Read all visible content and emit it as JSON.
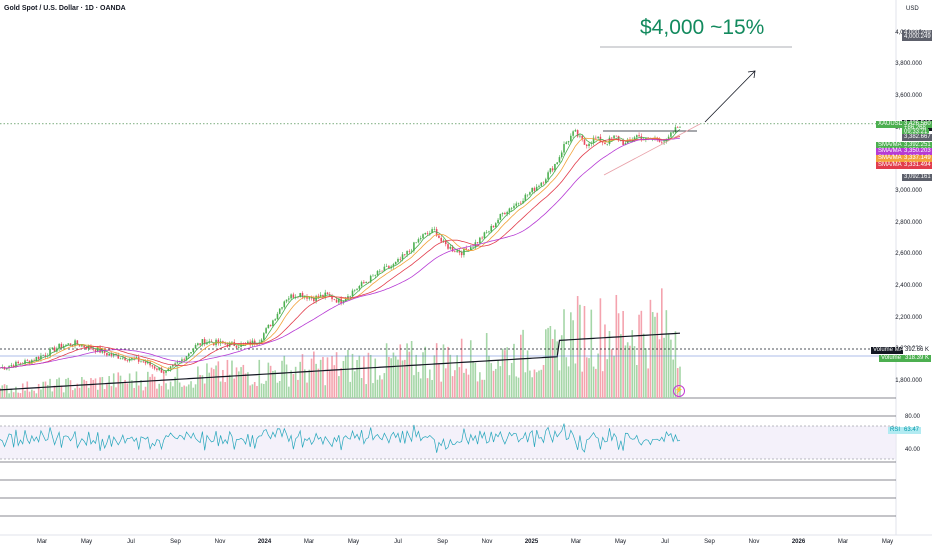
{
  "header": {
    "title": "Gold Spot / U.S. Dollar · 1D · OANDA",
    "currency": "USD"
  },
  "annotation": {
    "text": "$4,000 ~15%"
  },
  "price_axis": {
    "ticks": [
      "4,000.000",
      "3,800.000",
      "3,600.000",
      "3,400.000",
      "3,200.000",
      "3,000.000",
      "2,800.000",
      "2,600.000",
      "2,400.000",
      "2,200.000",
      "2,000.000",
      "1,800.000"
    ],
    "labels": [
      {
        "text": "4,000.249",
        "value": 4000.249,
        "color": "#5d606b"
      },
      {
        "text": "4,000.249",
        "value": 3975,
        "color": "#5d606b"
      },
      {
        "text": "3,431.377",
        "value": 3431.377,
        "color": "#131722"
      },
      {
        "text": "3,431.377",
        "value": 3404,
        "color": "#131722"
      },
      {
        "text": "XAUUSD",
        "value": 3426.56,
        "color": "#4caf50"
      },
      {
        "text": "3,426.560",
        "value": 3426.56,
        "color": "#4caf50"
      },
      {
        "text": "+86.268",
        "value": 3398,
        "color": "#4caf50"
      },
      {
        "text": "09:33:21",
        "value": 3374,
        "color": "#4caf50"
      },
      {
        "text": "3,382.667",
        "value": 3340,
        "color": "#5d606b"
      },
      {
        "text": "SMA/MA",
        "value": 3292.251,
        "color": "#4caf50"
      },
      {
        "text": "3,392.251",
        "value": 3292.251,
        "color": "#4caf50"
      },
      {
        "text": "SMA/MA",
        "value": 3250.203,
        "color": "#b73bd4"
      },
      {
        "text": "3,350.203",
        "value": 3250.203,
        "color": "#b73bd4"
      },
      {
        "text": "SMA/MA",
        "value": 3208,
        "color": "#f2a23b"
      },
      {
        "text": "3,337.149",
        "value": 3208,
        "color": "#f2a23b"
      },
      {
        "text": "SMA/MA",
        "value": 3166,
        "color": "#e23d4c"
      },
      {
        "text": "3,331.494",
        "value": 3166,
        "color": "#e23d4c"
      },
      {
        "text": "3,092.161",
        "value": 3092.161,
        "color": "#5d606b"
      }
    ],
    "volume_labels": [
      {
        "text": "Volume MA",
        "color": "#131722"
      },
      {
        "text": "392.66 K",
        "color": "#131722"
      },
      {
        "text": "Volume",
        "color": "#4caf50"
      },
      {
        "text": "318.39 K",
        "color": "#4caf50"
      }
    ]
  },
  "rsi": {
    "label": "RSI",
    "value": "63.47",
    "upper": "80.00",
    "lower": "40.00"
  },
  "time_axis": [
    "Mar",
    "May",
    "Jul",
    "Sep",
    "Nov",
    "2024",
    "Mar",
    "May",
    "Jul",
    "Sep",
    "Nov",
    "2025",
    "Mar",
    "May",
    "Jul",
    "Sep",
    "Nov",
    "2026",
    "Mar",
    "May"
  ],
  "chart_data": {
    "type": "candlestick",
    "symbol": "XAUUSD",
    "last_price": 3426.56,
    "change": 86.268,
    "resistance": 3431.377,
    "target": 4000.249,
    "ylim": [
      1700,
      4150
    ],
    "price_path": [
      [
        0,
        1890
      ],
      [
        0.02,
        1910
      ],
      [
        0.045,
        1935
      ],
      [
        0.07,
        1985
      ],
      [
        0.09,
        2030
      ],
      [
        0.11,
        2045
      ],
      [
        0.14,
        2010
      ],
      [
        0.16,
        1975
      ],
      [
        0.19,
        1950
      ],
      [
        0.21,
        1930
      ],
      [
        0.23,
        1890
      ],
      [
        0.245,
        1860
      ],
      [
        0.265,
        1930
      ],
      [
        0.285,
        2020
      ],
      [
        0.3,
        2060
      ],
      [
        0.33,
        2040
      ],
      [
        0.36,
        2035
      ],
      [
        0.38,
        2060
      ],
      [
        0.4,
        2180
      ],
      [
        0.42,
        2330
      ],
      [
        0.44,
        2360
      ],
      [
        0.46,
        2330
      ],
      [
        0.48,
        2350
      ],
      [
        0.5,
        2310
      ],
      [
        0.52,
        2380
      ],
      [
        0.54,
        2440
      ],
      [
        0.56,
        2500
      ],
      [
        0.58,
        2540
      ],
      [
        0.6,
        2620
      ],
      [
        0.62,
        2720
      ],
      [
        0.64,
        2760
      ],
      [
        0.65,
        2680
      ],
      [
        0.665,
        2640
      ],
      [
        0.68,
        2620
      ],
      [
        0.7,
        2680
      ],
      [
        0.72,
        2760
      ],
      [
        0.74,
        2870
      ],
      [
        0.76,
        2930
      ],
      [
        0.78,
        3000
      ],
      [
        0.8,
        3080
      ],
      [
        0.82,
        3200
      ],
      [
        0.83,
        3300
      ],
      [
        0.845,
        3380
      ],
      [
        0.86,
        3300
      ],
      [
        0.875,
        3340
      ],
      [
        0.89,
        3310
      ],
      [
        0.905,
        3350
      ],
      [
        0.92,
        3300
      ],
      [
        0.935,
        3360
      ],
      [
        0.95,
        3330
      ],
      [
        0.965,
        3340
      ],
      [
        0.98,
        3320
      ],
      [
        0.99,
        3380
      ],
      [
        1.0,
        3426.56
      ]
    ]
  }
}
